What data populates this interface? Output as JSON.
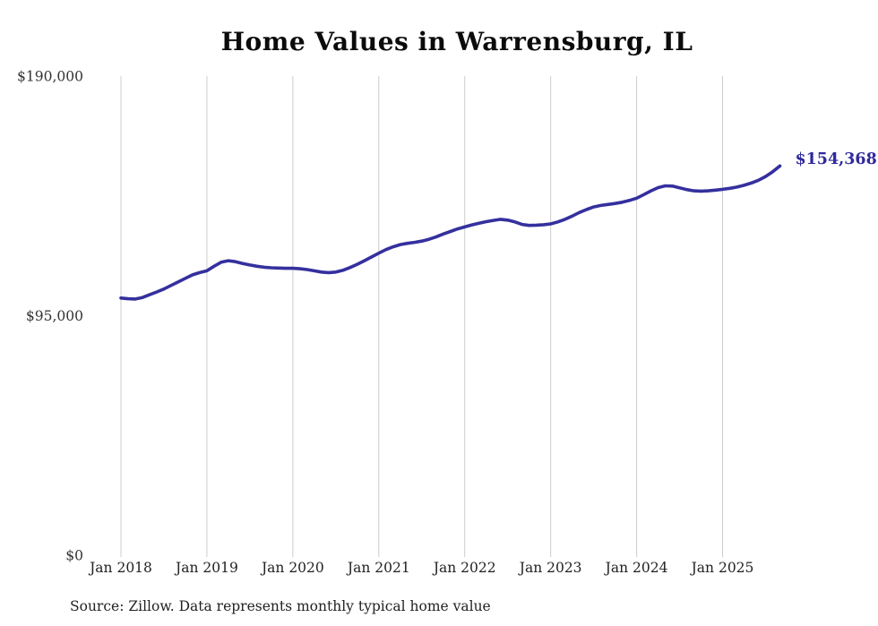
{
  "chart_data": {
    "type": "line",
    "title": "Home Values in Warrensburg, IL",
    "series_name": "Monthly typical home value",
    "x_start": "2018-01",
    "x_end": "2025-09",
    "x_tick_labels": [
      "Jan 2018",
      "Jan 2019",
      "Jan 2020",
      "Jan 2021",
      "Jan 2022",
      "Jan 2023",
      "Jan 2024",
      "Jan 2025"
    ],
    "y_ticks": [
      {
        "value": 0,
        "label": "$0"
      },
      {
        "value": 95000,
        "label": "$95,000"
      },
      {
        "value": 190000,
        "label": "$190,000"
      }
    ],
    "ylim": [
      0,
      190000
    ],
    "grid": "vertical-only",
    "legend": "none",
    "values": [
      102000,
      101700,
      101600,
      102200,
      103300,
      104400,
      105600,
      107000,
      108400,
      109800,
      111200,
      112100,
      112800,
      114600,
      116200,
      116800,
      116400,
      115700,
      115100,
      114600,
      114200,
      114000,
      113900,
      113800,
      113800,
      113600,
      113300,
      112800,
      112300,
      112100,
      112300,
      113000,
      114100,
      115400,
      116800,
      118300,
      119800,
      121200,
      122300,
      123200,
      123700,
      124100,
      124600,
      125300,
      126200,
      127400,
      128400,
      129400,
      130200,
      131000,
      131700,
      132300,
      132800,
      133200,
      132900,
      132200,
      131200,
      130800,
      130900,
      131100,
      131400,
      132200,
      133200,
      134500,
      135900,
      137100,
      138100,
      138700,
      139100,
      139500,
      140000,
      140700,
      141600,
      143000,
      144500,
      145800,
      146500,
      146400,
      145700,
      145000,
      144500,
      144400,
      144500,
      144800,
      145100,
      145500,
      146000,
      146700,
      147600,
      148700,
      150200,
      152100,
      154368
    ],
    "end_label": "$154,368",
    "line_color": "#34309e",
    "end_label_color": "#2f2a9b",
    "grid_color": "#cccccc",
    "source": "Source: Zillow. Data represents monthly typical home value"
  }
}
